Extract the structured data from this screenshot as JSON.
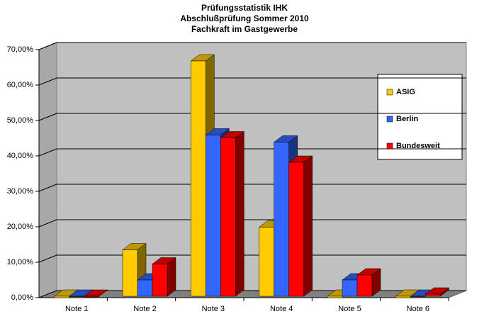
{
  "chart_data": {
    "type": "bar3d",
    "title": [
      "Prüfungsstatistik IHK",
      "Abschlußprüfung Sommer 2010",
      "Fachkraft im Gastgewerbe"
    ],
    "categories": [
      "Note 1",
      "Note 2",
      "Note 3",
      "Note 4",
      "Note 5",
      "Note 6"
    ],
    "series": [
      {
        "name": "ASIG",
        "color": "#ffcc00",
        "values": [
          0,
          13.5,
          66.8,
          19.9,
          0,
          0
        ]
      },
      {
        "name": "Berlin",
        "color": "#3366ff",
        "values": [
          0.3,
          5.0,
          45.9,
          43.9,
          5.0,
          0.3
        ]
      },
      {
        "name": "Bundesweit",
        "color": "#ff0000",
        "values": [
          0.2,
          9.5,
          45.1,
          38.2,
          6.4,
          1.0
        ]
      }
    ],
    "ylim": [
      0,
      70
    ],
    "yticks": [
      {
        "value": 0,
        "label": "0,00%"
      },
      {
        "value": 10,
        "label": "10,00%"
      },
      {
        "value": 20,
        "label": "20,00%"
      },
      {
        "value": 30,
        "label": "30,00%"
      },
      {
        "value": 40,
        "label": "40,00%"
      },
      {
        "value": 50,
        "label": "50,00%"
      },
      {
        "value": 60,
        "label": "60,00%"
      },
      {
        "value": 70,
        "label": "70,00%"
      }
    ],
    "grid": true
  }
}
